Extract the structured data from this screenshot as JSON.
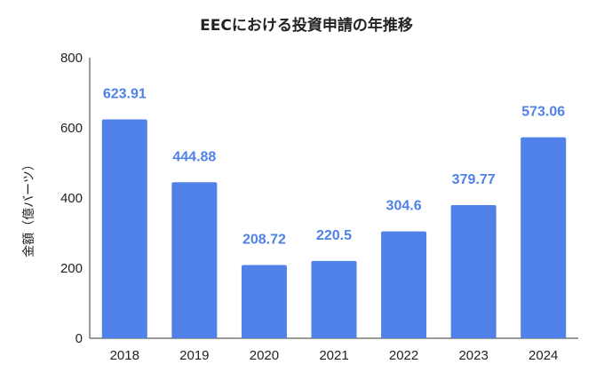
{
  "chart_data": {
    "type": "bar",
    "title": "EECにおける投資申請の年推移",
    "xlabel": "",
    "ylabel": "金額（億バーツ）",
    "categories": [
      "2018",
      "2019",
      "2020",
      "2021",
      "2022",
      "2023",
      "2024"
    ],
    "values": [
      623.91,
      444.88,
      208.72,
      220.5,
      304.6,
      379.77,
      573.06
    ],
    "value_labels": [
      "623.91",
      "444.88",
      "208.72",
      "220.5",
      "304.6",
      "379.77",
      "573.06"
    ],
    "ylim": [
      0,
      800
    ],
    "yticks": [
      "0",
      "200",
      "400",
      "600",
      "800"
    ],
    "grid": false,
    "legend": "none",
    "colors": {
      "bar": "#4F81E8",
      "label": "#4F81E8",
      "axis": "#333333",
      "text": "#222222"
    }
  }
}
